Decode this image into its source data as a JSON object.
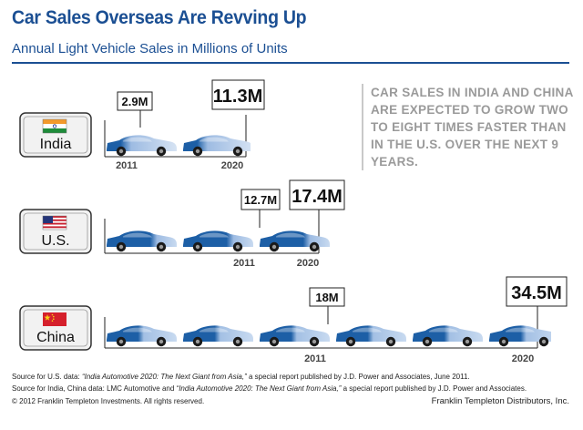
{
  "header": {
    "title": "Car Sales Overseas Are Revving Up",
    "subtitle": "Annual Light Vehicle Sales in Millions of Units"
  },
  "callout": "CAR SALES IN INDIA AND CHINA ARE EXPECTED TO GROW TWO TO EIGHT TIMES FASTER THAN IN THE U.S. OVER THE NEXT 9 YEARS.",
  "chart_data": {
    "type": "bar",
    "title": "Car Sales Overseas Are Revving Up",
    "subtitle": "Annual Light Vehicle Sales in Millions of Units",
    "unit": "Millions of Units",
    "categories": [
      "India",
      "U.S.",
      "China"
    ],
    "years": [
      "2011",
      "2020"
    ],
    "series": [
      {
        "name": "2011",
        "values": [
          2.9,
          12.7,
          18
        ],
        "labels": [
          "2.9M",
          "12.7M",
          "18M"
        ]
      },
      {
        "name": "2020",
        "values": [
          11.3,
          17.4,
          34.5
        ],
        "labels": [
          "11.3M",
          "17.4M",
          "34.5M"
        ]
      }
    ]
  },
  "footer": {
    "line1_a": "Source for U.S. data: ",
    "line1_i": "“India Automotive 2020: The Next Giant from Asia,”",
    "line1_b": " a special report published by J.D. Power and Associates, June 2011.",
    "line2_a": "Source for India, China data: LMC Automotive and ",
    "line2_i": "“India Automotive 2020: The Next Giant from Asia,”",
    "line2_b": " a special report published by J.D. Power and Associates.",
    "line3": "© 2012 Franklin Templeton Investments. All rights reserved.",
    "publisher": "Franklin Templeton Distributors, Inc."
  },
  "colors": {
    "brand_blue": "#1b4f93",
    "car_dark": "#1d5fa6",
    "car_light": "#a9c4e6",
    "callout_gray": "#9a9a9a"
  }
}
